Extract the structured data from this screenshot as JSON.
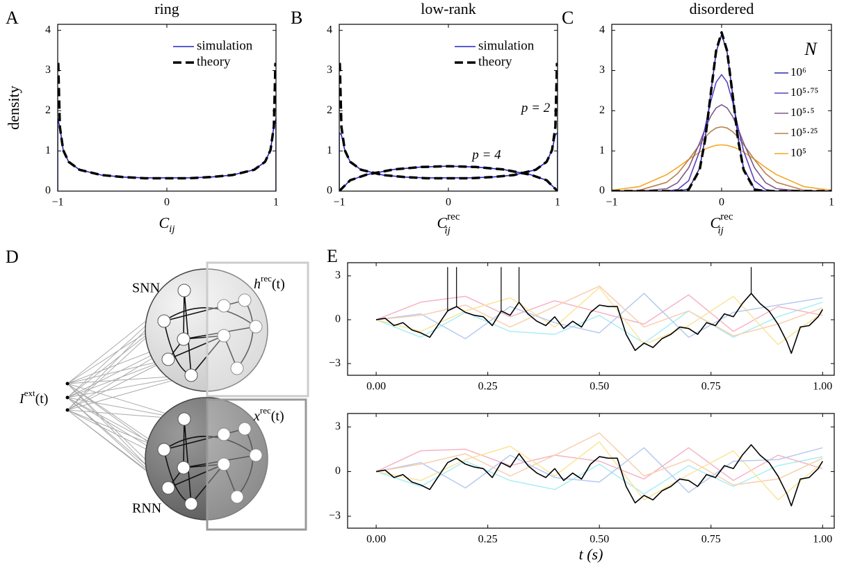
{
  "chart_data": [
    {
      "type": "line",
      "panel": "A",
      "title": "ring",
      "ylabel": "density",
      "xlabel": {
        "base": "C",
        "sub": "ij"
      },
      "xlim": [
        -1,
        1
      ],
      "ylim": [
        0,
        4.15
      ],
      "xticks": [
        {
          "value": -1,
          "label": "−1"
        },
        0,
        1
      ],
      "yticks": [
        0,
        1,
        2,
        3,
        4
      ],
      "legend": "upper right",
      "series": [
        {
          "name": "simulation",
          "color": "#2323c8",
          "style": "solid",
          "x": [
            -1,
            -1,
            -0.98,
            -0.95,
            -0.9,
            -0.8,
            -0.6,
            -0.4,
            -0.2,
            0,
            0.2,
            0.4,
            0.6,
            0.8,
            0.9,
            0.95,
            0.98,
            1,
            1
          ],
          "values": [
            0,
            1.8,
            1.6,
            1.02,
            0.73,
            0.53,
            0.4,
            0.35,
            0.33,
            0.33,
            0.33,
            0.35,
            0.4,
            0.53,
            0.73,
            1.02,
            1.6,
            1.8,
            0
          ]
        },
        {
          "name": "theory",
          "color": "#000000",
          "style": "dashed",
          "x": [
            -0.995,
            -0.98,
            -0.95,
            -0.9,
            -0.8,
            -0.6,
            -0.4,
            -0.2,
            0,
            0.2,
            0.4,
            0.6,
            0.8,
            0.9,
            0.95,
            0.98,
            0.995
          ],
          "values": [
            3.19,
            1.6,
            1.02,
            0.73,
            0.53,
            0.4,
            0.35,
            0.32,
            0.32,
            0.32,
            0.35,
            0.4,
            0.53,
            0.73,
            1.02,
            1.6,
            3.19
          ]
        }
      ]
    },
    {
      "type": "line",
      "panel": "B",
      "title": "low-rank",
      "xlabel": {
        "base": "C",
        "sup": "rec",
        "sub": "ij"
      },
      "xlim": [
        -1,
        1
      ],
      "ylim": [
        0,
        4.15
      ],
      "xticks": [
        {
          "value": -1,
          "label": "−1"
        },
        0,
        1
      ],
      "yticks": [
        0,
        1,
        2,
        3,
        4
      ],
      "legend": "upper right",
      "annotations": [
        {
          "text": "p = 2",
          "x": 0.8,
          "y": 2.05
        },
        {
          "text": "p = 4",
          "x": 0.35,
          "y": 0.88
        }
      ],
      "series": [
        {
          "name": "simulation",
          "color": "#2323c8",
          "style": "solid",
          "x": [
            -1,
            -1,
            -0.98,
            -0.95,
            -0.9,
            -0.8,
            -0.6,
            -0.4,
            -0.2,
            0,
            0.2,
            0.4,
            0.6,
            0.8,
            0.9,
            0.95,
            0.98,
            1,
            1
          ],
          "values": [
            0,
            1.45,
            1.4,
            1.02,
            0.73,
            0.53,
            0.4,
            0.35,
            0.33,
            0.33,
            0.33,
            0.35,
            0.4,
            0.53,
            0.73,
            1.02,
            1.4,
            1.45,
            0
          ]
        },
        {
          "name": "theory",
          "color": "#000000",
          "style": "dashed",
          "x": [
            -0.995,
            -0.98,
            -0.95,
            -0.9,
            -0.8,
            -0.6,
            -0.4,
            -0.2,
            0,
            0.2,
            0.4,
            0.6,
            0.8,
            0.9,
            0.95,
            0.98,
            0.995
          ],
          "values": [
            3.19,
            1.6,
            1.02,
            0.73,
            0.53,
            0.4,
            0.35,
            0.32,
            0.32,
            0.32,
            0.35,
            0.4,
            0.53,
            0.73,
            1.02,
            1.6,
            3.19
          ]
        },
        {
          "color": "#2323c8",
          "style": "solid",
          "x": [
            -1,
            -0.9,
            -0.75,
            -0.5,
            -0.25,
            0,
            0.25,
            0.5,
            0.75,
            0.9,
            1
          ],
          "values": [
            0,
            0.27,
            0.41,
            0.54,
            0.6,
            0.62,
            0.6,
            0.54,
            0.41,
            0.27,
            0
          ]
        },
        {
          "color": "#000000",
          "style": "dashed",
          "x": [
            -1,
            -0.9,
            -0.75,
            -0.5,
            -0.25,
            0,
            0.25,
            0.5,
            0.75,
            0.9,
            1
          ],
          "values": [
            0,
            0.27,
            0.41,
            0.54,
            0.6,
            0.62,
            0.6,
            0.54,
            0.41,
            0.27,
            0
          ]
        }
      ]
    },
    {
      "type": "line",
      "panel": "C",
      "title": "disordered",
      "xlabel": {
        "base": "C",
        "sup": "rec",
        "sub": "ij"
      },
      "xlim": [
        -1,
        1
      ],
      "ylim": [
        0,
        4.15
      ],
      "xticks": [
        {
          "value": -1,
          "label": "−1"
        },
        0,
        1
      ],
      "yticks": [
        0,
        1,
        2,
        3,
        4
      ],
      "legend": "right",
      "legend_title": "N",
      "x": [
        -1,
        -0.75,
        -0.5,
        -0.4,
        -0.3,
        -0.2,
        -0.15,
        -0.1,
        -0.05,
        0,
        0.05,
        0.1,
        0.15,
        0.2,
        0.3,
        0.4,
        0.5,
        0.75,
        1
      ],
      "series": [
        {
          "name": "10⁵",
          "color": "#f5a623",
          "style": "solid",
          "values": [
            0.02,
            0.11,
            0.41,
            0.59,
            0.79,
            0.97,
            1.05,
            1.1,
            1.14,
            1.15,
            1.14,
            1.1,
            1.05,
            0.97,
            0.79,
            0.59,
            0.41,
            0.11,
            0.02
          ]
        },
        {
          "name": "10⁵·²⁵",
          "color": "#b8804e",
          "style": "solid",
          "values": [
            0,
            0.02,
            0.22,
            0.44,
            0.78,
            1.16,
            1.34,
            1.48,
            1.57,
            1.6,
            1.57,
            1.48,
            1.34,
            1.16,
            0.78,
            0.44,
            0.22,
            0.02,
            0
          ]
        },
        {
          "name": "10⁵·⁵",
          "color": "#7d5a86",
          "style": "solid",
          "values": [
            0,
            0,
            0.06,
            0.21,
            0.58,
            1.2,
            1.55,
            1.86,
            2.07,
            2.15,
            2.07,
            1.86,
            1.55,
            1.2,
            0.58,
            0.21,
            0.06,
            0,
            0
          ]
        },
        {
          "name": "10⁵·⁷⁵",
          "color": "#5a3fc0",
          "style": "solid",
          "values": [
            0,
            0,
            0,
            0.04,
            0.26,
            1.0,
            1.59,
            2.22,
            2.71,
            2.9,
            2.71,
            2.22,
            1.59,
            1.0,
            0.26,
            0.04,
            0,
            0,
            0
          ]
        },
        {
          "name": "10⁶",
          "color": "#2a2aa8",
          "style": "solid",
          "values": [
            0,
            0,
            0,
            0,
            0.05,
            0.57,
            1.32,
            2.41,
            3.46,
            3.9,
            3.46,
            2.41,
            1.32,
            0.57,
            0.05,
            0,
            0,
            0,
            0
          ]
        },
        {
          "color": "#000000",
          "style": "dashed",
          "values": [
            0,
            0,
            0,
            0,
            0.04,
            0.53,
            1.28,
            2.4,
            3.49,
            3.95,
            3.49,
            2.4,
            1.28,
            0.53,
            0.04,
            0,
            0,
            0,
            0
          ]
        }
      ]
    },
    {
      "type": "line",
      "panel": "E",
      "xlim": [
        -0.064,
        1.026
      ],
      "ylim": [
        -3.8,
        3.9
      ],
      "xticks": [
        {
          "value": 0,
          "label": "0.00"
        },
        {
          "value": 0.25,
          "label": "0.25"
        },
        {
          "value": 0.5,
          "label": "0.50"
        },
        {
          "value": 0.75,
          "label": "0.75"
        },
        {
          "value": 1,
          "label": "1.00"
        }
      ],
      "yticks": [
        {
          "value": -3,
          "label": "−3"
        },
        0,
        3
      ],
      "spikes": [
        0.16,
        0.18,
        0.28,
        0.32,
        0.84
      ],
      "spike_top": 3.6,
      "series": [
        {
          "color": "#a8eef4",
          "style": "faint",
          "x": [
            0,
            0.1,
            0.2,
            0.3,
            0.4,
            0.5,
            0.6,
            0.7,
            0.8,
            0.9,
            1
          ],
          "values": [
            0,
            -1.2,
            0.5,
            -0.8,
            -1.0,
            0.3,
            -1.6,
            0.6,
            -1.2,
            0.2,
            1.2
          ]
        },
        {
          "color": "#f6b3c4",
          "style": "faint",
          "x": [
            0,
            0.1,
            0.2,
            0.3,
            0.4,
            0.5,
            0.6,
            0.7,
            0.8,
            0.9,
            1
          ],
          "values": [
            0,
            1.2,
            1.6,
            0.2,
            1.3,
            0.5,
            -0.3,
            1.7,
            -0.8,
            0.9,
            0.3
          ]
        },
        {
          "color": "#fbe49a",
          "style": "faint",
          "x": [
            0,
            0.1,
            0.2,
            0.3,
            0.4,
            0.5,
            0.6,
            0.7,
            0.8,
            0.9,
            1
          ],
          "values": [
            0,
            -0.8,
            0.6,
            1.5,
            -0.5,
            2.2,
            -1.7,
            -0.4,
            1.6,
            -1.7,
            0.5
          ]
        },
        {
          "color": "#b6caf0",
          "style": "faint",
          "x": [
            0,
            0.1,
            0.2,
            0.3,
            0.4,
            0.5,
            0.6,
            0.7,
            0.8,
            0.9,
            1
          ],
          "values": [
            0,
            0.4,
            -1.3,
            0.9,
            -0.2,
            -0.9,
            1.8,
            -1.2,
            0.5,
            1.0,
            1.5
          ]
        },
        {
          "color": "#f8cfae",
          "style": "faint",
          "x": [
            0,
            0.1,
            0.2,
            0.3,
            0.4,
            0.5,
            0.6,
            0.7,
            0.8,
            0.9,
            1
          ],
          "values": [
            0,
            0.3,
            1.0,
            -0.5,
            0.9,
            2.3,
            -0.5,
            0.6,
            -1.1,
            -0.3,
            0.8
          ]
        },
        {
          "color": "#000000",
          "style": "solid",
          "x": [
            0,
            0.02,
            0.04,
            0.06,
            0.08,
            0.1,
            0.12,
            0.14,
            0.16,
            0.18,
            0.2,
            0.22,
            0.24,
            0.26,
            0.28,
            0.3,
            0.32,
            0.34,
            0.36,
            0.38,
            0.4,
            0.42,
            0.44,
            0.46,
            0.48,
            0.5,
            0.52,
            0.54,
            0.56,
            0.58,
            0.6,
            0.62,
            0.64,
            0.66,
            0.68,
            0.7,
            0.72,
            0.74,
            0.76,
            0.78,
            0.8,
            0.82,
            0.84,
            0.86,
            0.88,
            0.9,
            0.92,
            0.93,
            0.95,
            0.97,
            0.99,
            1
          ],
          "values": [
            0,
            0.1,
            -0.4,
            -0.2,
            -0.7,
            -0.9,
            -1.2,
            -0.3,
            0.6,
            0.9,
            0.5,
            0.3,
            0.2,
            -0.4,
            0.6,
            0.3,
            1.2,
            0.4,
            -0.1,
            -0.4,
            0.2,
            -0.6,
            -0.1,
            -0.5,
            0.5,
            1.0,
            0.9,
            0.9,
            -1.0,
            -2.1,
            -1.6,
            -1.9,
            -1.3,
            -1.0,
            -0.5,
            -0.6,
            -1.0,
            -0.2,
            -0.4,
            0.4,
            0.2,
            1.1,
            1.8,
            1.1,
            0.6,
            -0.3,
            -1.5,
            -2.3,
            -0.5,
            -0.4,
            0.2,
            0.7
          ]
        }
      ]
    },
    {
      "type": "line",
      "xlabel": "t (s)",
      "xlim": [
        -0.064,
        1.026
      ],
      "ylim": [
        -3.8,
        3.9
      ],
      "xticks": [
        {
          "value": 0,
          "label": "0.00"
        },
        {
          "value": 0.25,
          "label": "0.25"
        },
        {
          "value": 0.5,
          "label": "0.50"
        },
        {
          "value": 0.75,
          "label": "0.75"
        },
        {
          "value": 1,
          "label": "1.00"
        }
      ],
      "yticks": [
        {
          "value": -3,
          "label": "−3"
        },
        0,
        3
      ],
      "series": [
        {
          "color": "#a8eef4",
          "style": "faint",
          "x": [
            0,
            0.1,
            0.2,
            0.3,
            0.4,
            0.5,
            0.6,
            0.7,
            0.8,
            0.9,
            1
          ],
          "values": [
            0,
            -1.0,
            0.7,
            -0.6,
            -1.2,
            0.5,
            -1.5,
            0.4,
            -1.0,
            0.4,
            1.0
          ]
        },
        {
          "color": "#f6b3c4",
          "style": "faint",
          "x": [
            0,
            0.1,
            0.2,
            0.3,
            0.4,
            0.5,
            0.6,
            0.7,
            0.8,
            0.9,
            1
          ],
          "values": [
            0,
            1.4,
            1.5,
            0.4,
            1.1,
            0.7,
            -0.5,
            1.6,
            -0.6,
            1.1,
            0.2
          ]
        },
        {
          "color": "#fbe49a",
          "style": "faint",
          "x": [
            0,
            0.1,
            0.2,
            0.3,
            0.4,
            0.5,
            0.6,
            0.7,
            0.8,
            0.9,
            1
          ],
          "values": [
            0,
            -0.6,
            0.8,
            1.7,
            -0.3,
            2.0,
            -1.9,
            -0.2,
            1.4,
            -1.9,
            0.6
          ]
        },
        {
          "color": "#b6caf0",
          "style": "faint",
          "x": [
            0,
            0.1,
            0.2,
            0.3,
            0.4,
            0.5,
            0.6,
            0.7,
            0.8,
            0.9,
            1
          ],
          "values": [
            0,
            0.6,
            -1.1,
            1.1,
            -0.4,
            -0.7,
            1.6,
            -1.4,
            0.7,
            0.8,
            1.6
          ]
        },
        {
          "color": "#f8cfae",
          "style": "faint",
          "x": [
            0,
            0.1,
            0.2,
            0.3,
            0.4,
            0.5,
            0.6,
            0.7,
            0.8,
            0.9,
            1
          ],
          "values": [
            0,
            0.5,
            1.2,
            -0.3,
            1.1,
            2.6,
            -0.3,
            0.8,
            -0.9,
            -0.5,
            0.9
          ]
        },
        {
          "color": "#000000",
          "style": "solid",
          "x": [
            0,
            0.02,
            0.04,
            0.06,
            0.08,
            0.1,
            0.12,
            0.14,
            0.16,
            0.18,
            0.2,
            0.22,
            0.24,
            0.26,
            0.28,
            0.3,
            0.32,
            0.34,
            0.36,
            0.38,
            0.4,
            0.42,
            0.44,
            0.46,
            0.48,
            0.5,
            0.52,
            0.54,
            0.56,
            0.58,
            0.6,
            0.62,
            0.64,
            0.66,
            0.68,
            0.7,
            0.72,
            0.74,
            0.76,
            0.78,
            0.8,
            0.82,
            0.84,
            0.86,
            0.88,
            0.9,
            0.92,
            0.93,
            0.95,
            0.97,
            0.99,
            1
          ],
          "values": [
            0,
            0.1,
            -0.4,
            -0.2,
            -0.7,
            -0.9,
            -1.2,
            -0.3,
            0.6,
            0.9,
            0.5,
            0.3,
            0.2,
            -0.4,
            0.6,
            0.3,
            1.2,
            0.4,
            -0.1,
            -0.4,
            0.2,
            -0.6,
            -0.1,
            -0.5,
            0.5,
            1.0,
            0.9,
            0.9,
            -1.0,
            -2.1,
            -1.6,
            -1.9,
            -1.3,
            -1.0,
            -0.5,
            -0.6,
            -1.0,
            -0.2,
            -0.4,
            0.4,
            0.2,
            1.1,
            1.8,
            1.1,
            0.6,
            -0.3,
            -1.5,
            -2.3,
            -0.5,
            -0.4,
            0.2,
            0.7
          ]
        }
      ]
    }
  ],
  "diagram": {
    "panel": "D",
    "snn": "SNN",
    "rnn": "RNN",
    "h_label": {
      "base": "h",
      "sup": "rec",
      "arg": "(t)"
    },
    "x_label": {
      "base": "x",
      "sup": "rec",
      "arg": "(t)"
    },
    "i_label": {
      "base": "I",
      "sup": "ext",
      "arg": "(t)"
    }
  }
}
